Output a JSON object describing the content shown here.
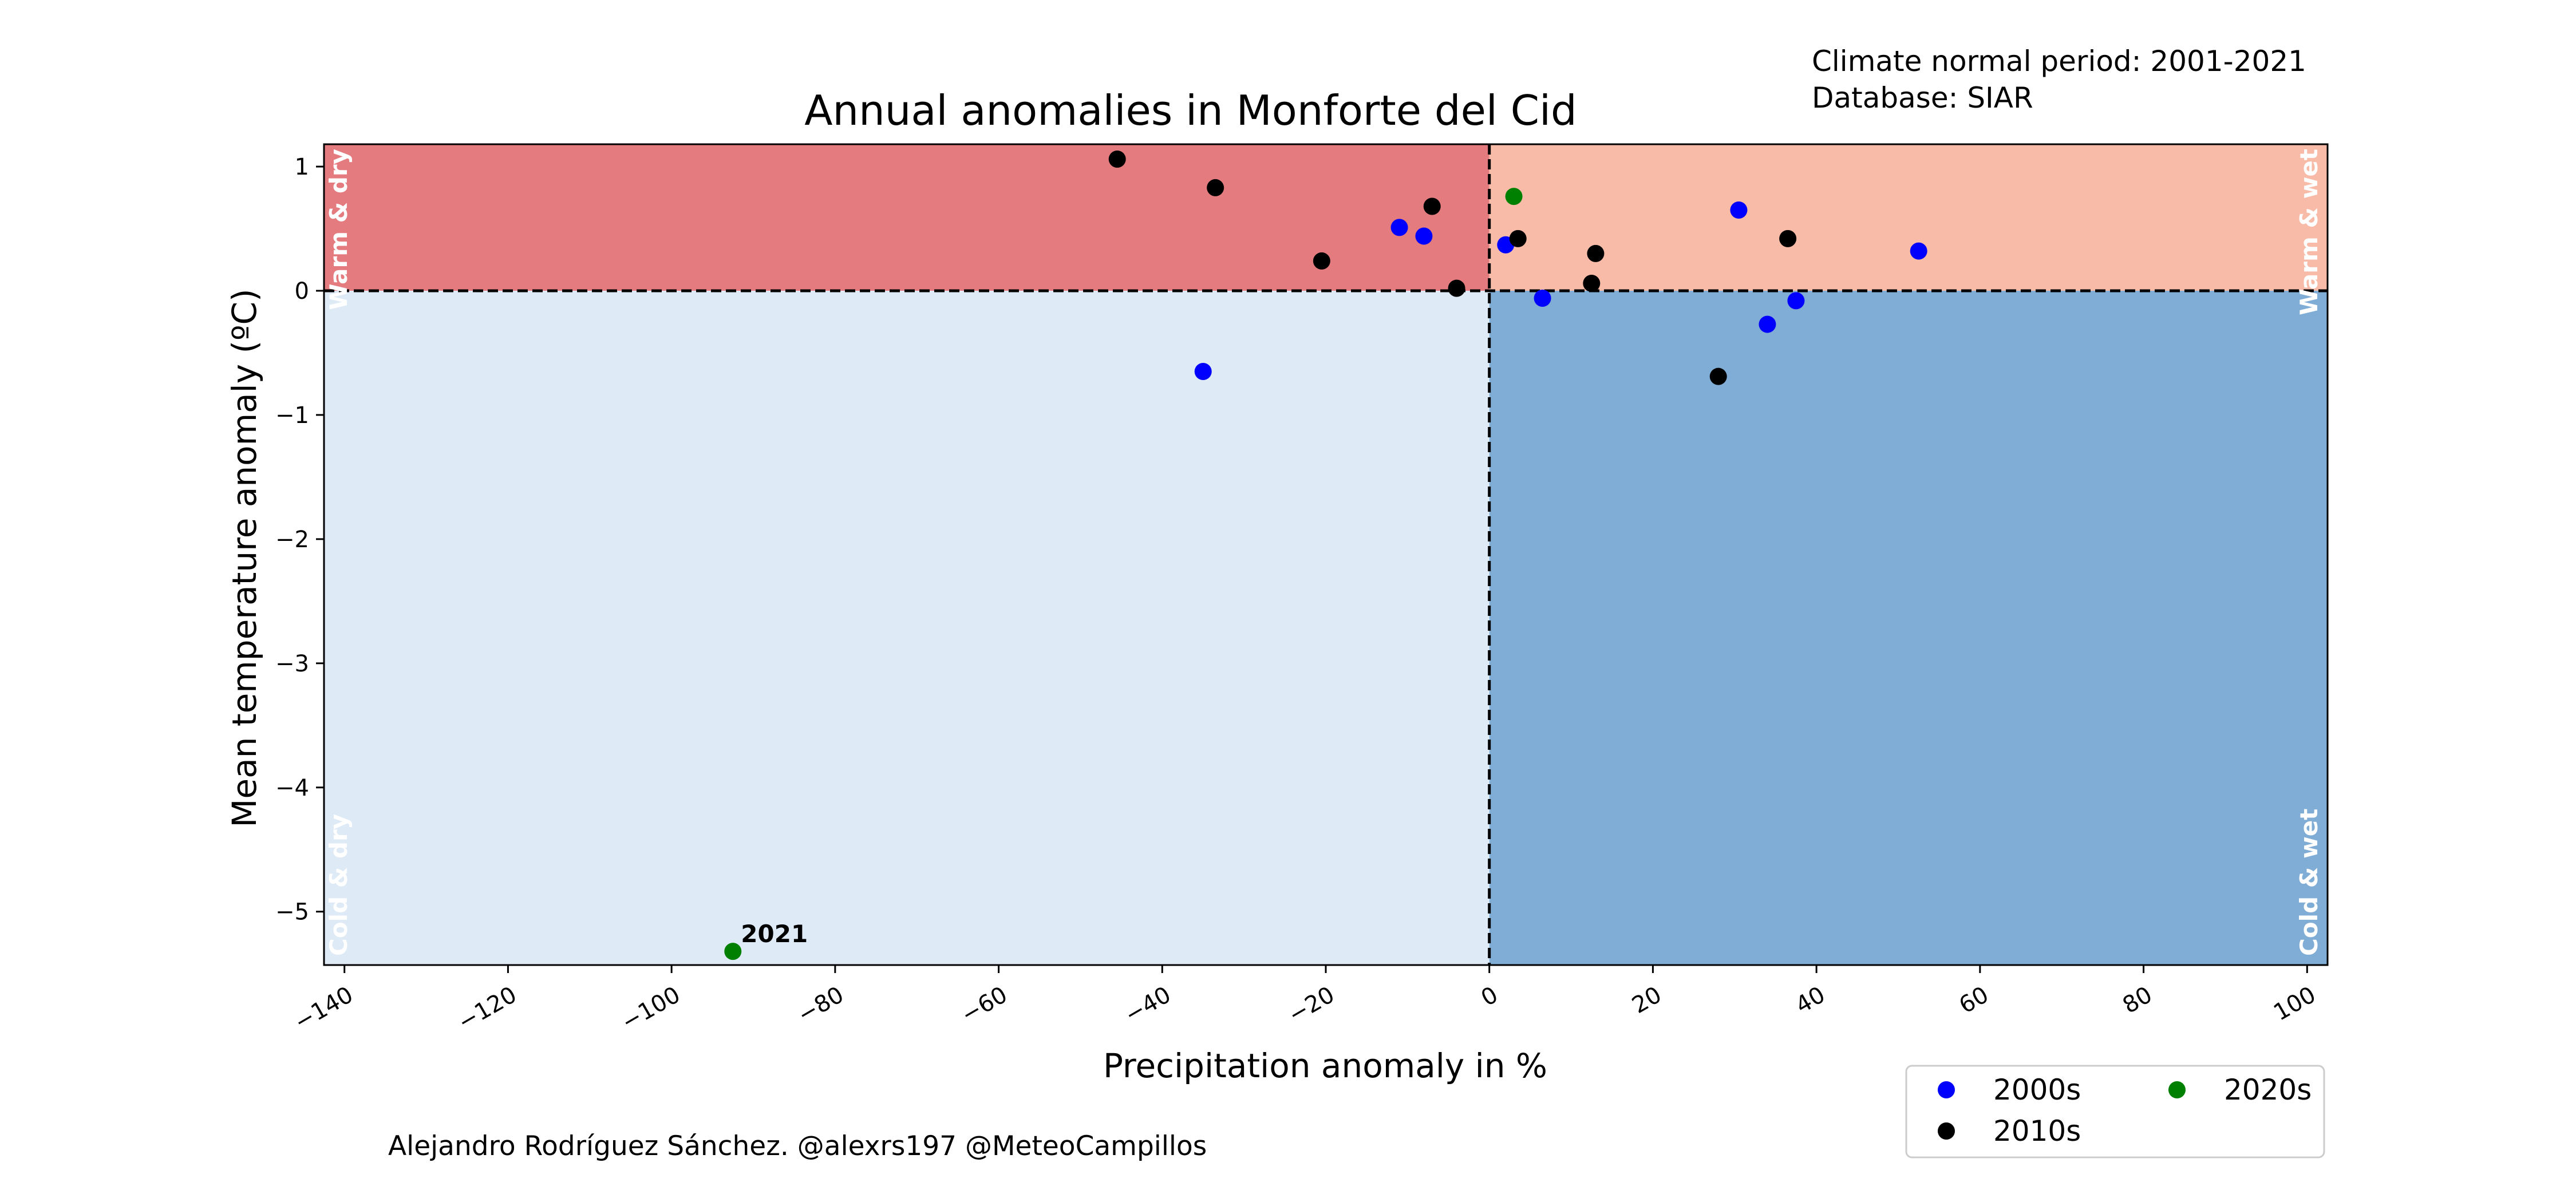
{
  "chart_data": {
    "type": "scatter",
    "title": "Annual anomalies in Monforte   del   Cid",
    "xlabel": "Precipitation anomaly in %",
    "ylabel": "Mean temperature anomaly (ºC)",
    "xlim": [
      -142.5,
      102.5
    ],
    "ylim": [
      -5.43,
      1.18
    ],
    "x_ticks": [
      -140,
      -120,
      -100,
      -80,
      -60,
      -40,
      -20,
      0,
      20,
      40,
      60,
      80,
      100
    ],
    "x_tick_labels": [
      "−140",
      "−120",
      "−100",
      "−80",
      "−60",
      "−40",
      "−20",
      "0",
      "20",
      "40",
      "60",
      "80",
      "100"
    ],
    "y_ticks": [
      1,
      0,
      -1,
      -2,
      -3,
      -4,
      -5
    ],
    "y_tick_labels": [
      "1",
      "0",
      "−1",
      "−2",
      "−3",
      "−4",
      "−5"
    ],
    "grid": false,
    "legend_placement": "below-right",
    "quadrants": [
      {
        "label": "Warm & dry",
        "color": "#e37b7f"
      },
      {
        "label": "Warm & wet",
        "color": "#f8bba8"
      },
      {
        "label": "Cold & dry",
        "color": "#deeaf6"
      },
      {
        "label": "Cold & wet",
        "color": "#80add5"
      }
    ],
    "series": [
      {
        "name": "2000s",
        "color": "#0000ff",
        "points": [
          {
            "x": -35,
            "y": -0.65
          },
          {
            "x": -11,
            "y": 0.51
          },
          {
            "x": -8,
            "y": 0.44
          },
          {
            "x": 2,
            "y": 0.37
          },
          {
            "x": 6.5,
            "y": -0.06
          },
          {
            "x": 30.5,
            "y": 0.65
          },
          {
            "x": 34,
            "y": -0.27
          },
          {
            "x": 37.5,
            "y": -0.08
          },
          {
            "x": 52.5,
            "y": 0.32
          }
        ]
      },
      {
        "name": "2010s",
        "color": "#000000",
        "points": [
          {
            "x": -45.5,
            "y": 1.06
          },
          {
            "x": -33.5,
            "y": 0.83
          },
          {
            "x": -20.5,
            "y": 0.24
          },
          {
            "x": -7,
            "y": 0.68
          },
          {
            "x": -4,
            "y": 0.02
          },
          {
            "x": 3.5,
            "y": 0.42
          },
          {
            "x": 12.5,
            "y": 0.06
          },
          {
            "x": 13,
            "y": 0.3
          },
          {
            "x": 28,
            "y": -0.69
          },
          {
            "x": 36.5,
            "y": 0.42
          }
        ]
      },
      {
        "name": "2020s",
        "color": "#008000",
        "points": [
          {
            "x": 3,
            "y": 0.76
          },
          {
            "x": -92.5,
            "y": -5.32,
            "label": "2021"
          }
        ]
      }
    ]
  },
  "info": {
    "normal_period": "Climate normal period: 2001-2021",
    "database": "Database: SIAR"
  },
  "credit": "Alejandro Rodríguez Sánchez. @alexrs197 @MeteoCampillos"
}
